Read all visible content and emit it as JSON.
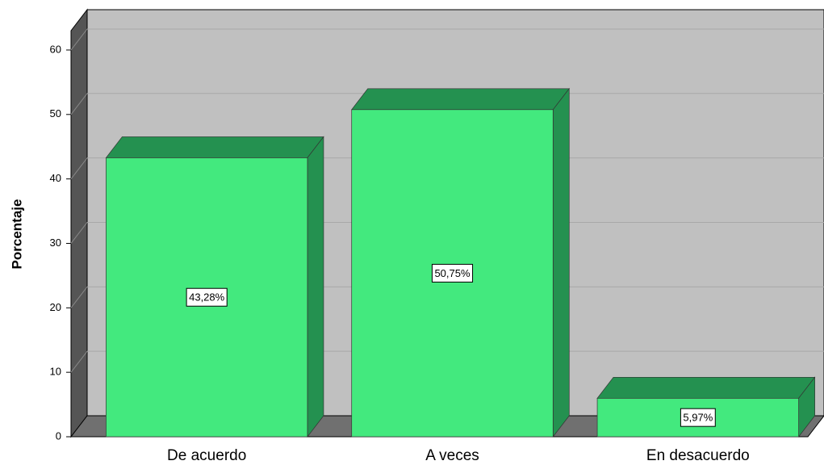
{
  "chart_data": {
    "type": "bar3d",
    "y_label": "Porcentaje",
    "categories": [
      "De acuerdo",
      "A veces",
      "En desacuerdo"
    ],
    "values": [
      43.28,
      50.75,
      5.97
    ],
    "value_labels": [
      "43,28%",
      "50,75%",
      "5,97%"
    ],
    "color": "#43e97e",
    "ylim": [
      0,
      63
    ],
    "yticks": [
      0,
      10,
      20,
      30,
      40,
      50,
      60
    ],
    "grid": true
  }
}
